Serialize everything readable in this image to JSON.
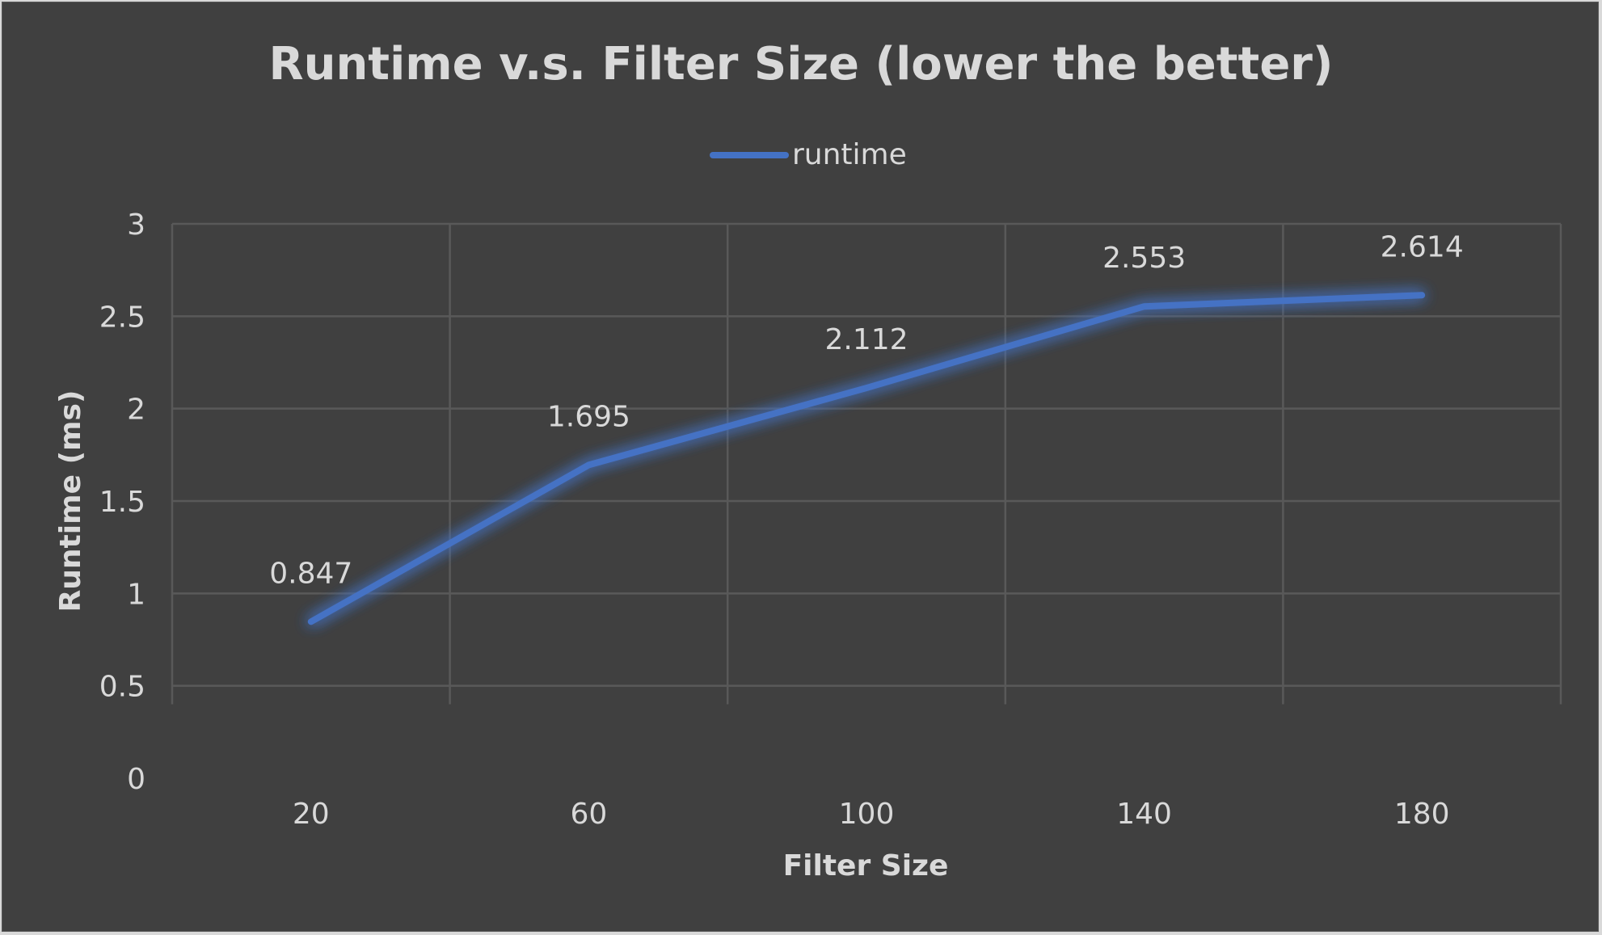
{
  "chart_data": {
    "type": "line",
    "title": "Runtime v.s. Filter Size (lower the better)",
    "xlabel": "Filter Size",
    "ylabel": "Runtime (ms)",
    "categories": [
      "20",
      "60",
      "100",
      "140",
      "180"
    ],
    "series": [
      {
        "name": "runtime",
        "values": [
          0.847,
          1.695,
          2.112,
          2.553,
          2.614
        ],
        "color": "#4472c4"
      }
    ],
    "data_labels": [
      "0.847",
      "1.695",
      "2.112",
      "2.553",
      "2.614"
    ],
    "ylim": [
      0,
      3
    ],
    "yticks": [
      "0",
      "0.5",
      "1",
      "1.5",
      "2",
      "2.5",
      "3"
    ],
    "grid": true,
    "legend_position": "top-center",
    "background": "#404040",
    "text_color": "#d9d9d9",
    "grid_color": "#595959"
  }
}
